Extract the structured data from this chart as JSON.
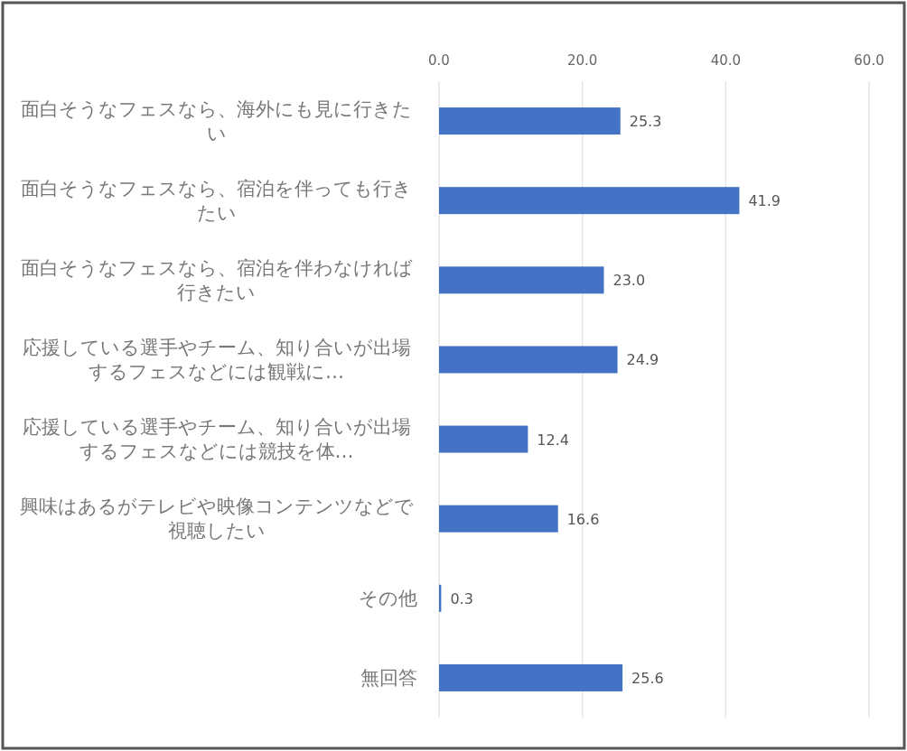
{
  "chart_data": {
    "type": "bar",
    "orientation": "horizontal",
    "categories": [
      "面白そうなフェスなら、海外にも見に行きたい",
      "面白そうなフェスなら、宿泊を伴っても行きたい",
      "面白そうなフェスなら、宿泊を伴わなければ行きたい",
      "応援している選手やチーム、知り合いが出場するフェスなどには観戦に…",
      "応援している選手やチーム、知り合いが出場するフェスなどには競技を体…",
      "興味はあるがテレビや映像コンテンツなどで視聴したい",
      "その他",
      "無回答"
    ],
    "values": [
      25.3,
      41.9,
      23.0,
      24.9,
      12.4,
      16.6,
      0.3,
      25.6
    ],
    "color": "#4472c4",
    "xlim": [
      0,
      60
    ],
    "xticks": [
      {
        "value": 0,
        "label": "0.0"
      },
      {
        "value": 20,
        "label": "20.0"
      },
      {
        "value": 40,
        "label": "40.0"
      },
      {
        "value": 60,
        "label": "60.0"
      }
    ],
    "grid": "x",
    "value_labels": [
      "25.3",
      "41.9",
      "23.0",
      "24.9",
      "12.4",
      "16.6",
      "0.3",
      "25.6"
    ]
  }
}
